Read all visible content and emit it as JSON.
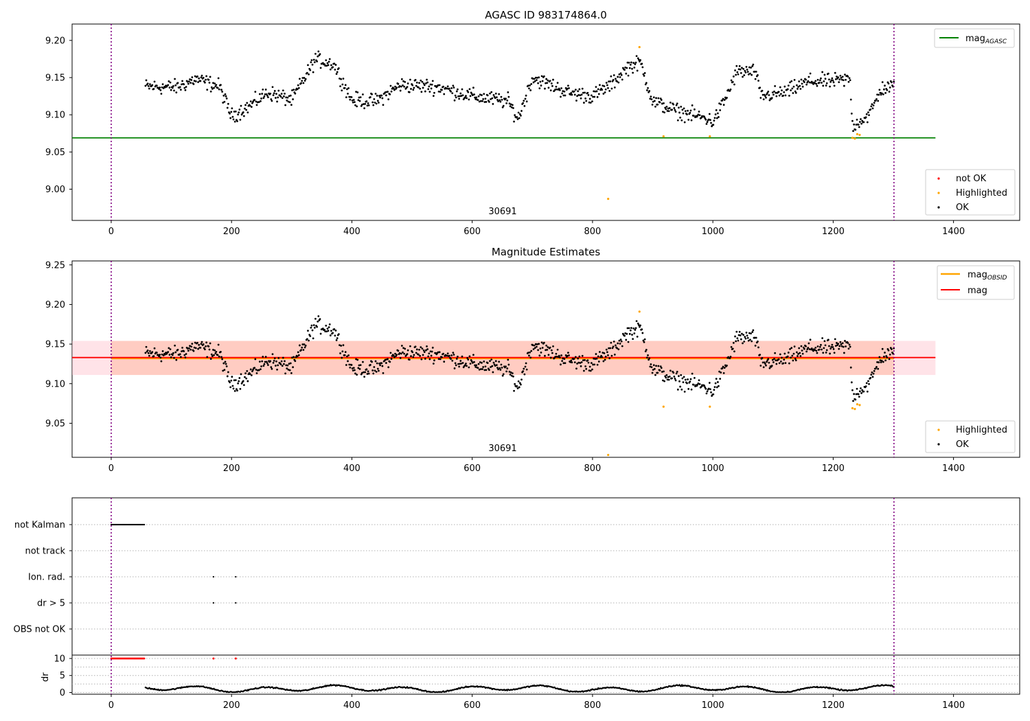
{
  "chart_data": [
    {
      "type": "scatter",
      "title": "AGASC ID 983174864.0",
      "annotation": "30691",
      "xlim": [
        -65,
        1510
      ],
      "ylim": [
        8.958,
        9.222
      ],
      "xticks": [
        0,
        200,
        400,
        600,
        800,
        1000,
        1200,
        1400
      ],
      "yticks": [
        9.0,
        9.05,
        9.1,
        9.15,
        9.2
      ],
      "ytick_labels": [
        "9.00",
        "9.05",
        "9.10",
        "9.15",
        "9.20"
      ],
      "vlines": [
        0,
        1301
      ],
      "hline": {
        "name": "mag_AGASC",
        "value": 9.069,
        "color": "#008000",
        "xrange": [
          -65,
          1370
        ]
      },
      "legend_upper": [
        {
          "label": "mag",
          "sub": "AGASC",
          "color": "#008000"
        }
      ],
      "legend_lower": [
        {
          "label": "not OK",
          "color": "#ff0000"
        },
        {
          "label": "Highlighted",
          "color": "#ffa500"
        },
        {
          "label": "OK",
          "color": "#000000"
        }
      ],
      "series": [
        {
          "name": "OK",
          "color": "#000000",
          "x_start": 57,
          "x_end": 1301,
          "trend": [
            [
              57,
              9.138
            ],
            [
              110,
              9.137
            ],
            [
              140,
              9.148
            ],
            [
              180,
              9.138
            ],
            [
              200,
              9.098
            ],
            [
              230,
              9.112
            ],
            [
              260,
              9.13
            ],
            [
              300,
              9.12
            ],
            [
              340,
              9.175
            ],
            [
              370,
              9.168
            ],
            [
              400,
              9.12
            ],
            [
              440,
              9.118
            ],
            [
              480,
              9.14
            ],
            [
              540,
              9.138
            ],
            [
              600,
              9.125
            ],
            [
              660,
              9.118
            ],
            [
              676,
              9.094
            ],
            [
              700,
              9.15
            ],
            [
              760,
              9.13
            ],
            [
              800,
              9.125
            ],
            [
              830,
              9.14
            ],
            [
              860,
              9.165
            ],
            [
              880,
              9.17
            ],
            [
              900,
              9.118
            ],
            [
              940,
              9.105
            ],
            [
              990,
              9.095
            ],
            [
              1000,
              9.09
            ],
            [
              1020,
              9.12
            ],
            [
              1040,
              9.158
            ],
            [
              1070,
              9.158
            ],
            [
              1080,
              9.125
            ],
            [
              1120,
              9.13
            ],
            [
              1160,
              9.145
            ],
            [
              1200,
              9.145
            ],
            [
              1228,
              9.148
            ],
            [
              1232,
              9.085
            ],
            [
              1260,
              9.1
            ],
            [
              1280,
              9.135
            ],
            [
              1301,
              9.138
            ]
          ]
        },
        {
          "name": "Highlighted",
          "color": "#ffa500",
          "x": [
            826,
            878,
            918,
            995,
            1232,
            1236,
            1240,
            1244
          ],
          "y": [
            8.987,
            9.191,
            9.071,
            9.071,
            9.069,
            9.068,
            9.074,
            9.073
          ]
        }
      ]
    },
    {
      "type": "scatter",
      "title": "Magnitude Estimates",
      "annotation": "30691",
      "xlim": [
        -65,
        1510
      ],
      "ylim": [
        9.007,
        9.255
      ],
      "xticks": [
        0,
        200,
        400,
        600,
        800,
        1000,
        1200,
        1400
      ],
      "yticks": [
        9.05,
        9.1,
        9.15,
        9.2,
        9.25
      ],
      "ytick_labels": [
        "9.05",
        "9.10",
        "9.15",
        "9.20",
        "9.25"
      ],
      "vlines": [
        0,
        1301
      ],
      "mag": 9.133,
      "mag_obsid": 9.132,
      "mag_band": [
        9.111,
        9.154
      ],
      "legend_upper": [
        {
          "label": "mag",
          "sub": "OBSID",
          "color": "#ffa500"
        },
        {
          "label": "mag",
          "sub": "",
          "color": "#ff0000"
        }
      ],
      "legend_lower": [
        {
          "label": "Highlighted",
          "color": "#ffa500"
        },
        {
          "label": "OK",
          "color": "#000000"
        }
      ]
    },
    {
      "type": "scatter",
      "title": "",
      "xlim": [
        -65,
        1510
      ],
      "xticks": [
        0,
        200,
        400,
        600,
        800,
        1000,
        1200,
        1400
      ],
      "vlines": [
        0,
        1301
      ],
      "flag_rows": [
        "not Kalman",
        "not track",
        "Ion. rad.",
        "dr > 5",
        "OBS not OK"
      ],
      "flags": {
        "not Kalman": {
          "x_start": 0,
          "x_end": 55
        },
        "Ion. rad.": {
          "x": [
            170,
            207
          ]
        },
        "dr > 5": {
          "x": [
            170,
            207
          ]
        }
      },
      "dr": {
        "ylabel": "dr",
        "ylim": [
          -0.5,
          11
        ],
        "yticks": [
          0,
          5,
          10
        ],
        "ytick_labels": [
          "0",
          "5",
          "10"
        ],
        "cap": 10,
        "capped_x": [
          0,
          55,
          170,
          207
        ]
      }
    }
  ]
}
